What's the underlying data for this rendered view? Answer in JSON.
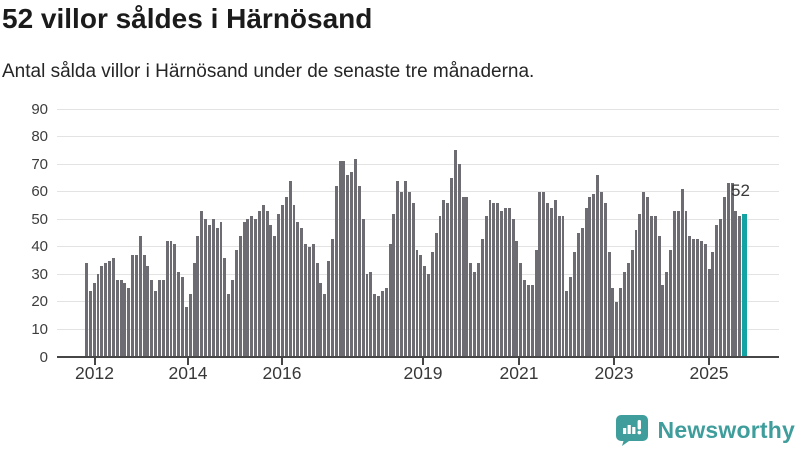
{
  "header": {
    "title": "52 villor såldes i Härnösand",
    "subtitle": "Antal sålda villor i Härnösand under de senaste tre månaderna."
  },
  "annotation": {
    "latest_value_label": "52"
  },
  "branding": {
    "name": "Newsworthy"
  },
  "colors": {
    "bar": "#6c6c72",
    "highlight": "#14a3a3",
    "grid": "#e3e3e4",
    "axis": "#464646",
    "logo": "#3f9e9c"
  },
  "chart_data": {
    "type": "bar",
    "title": "52 villor såldes i Härnösand",
    "subtitle": "Antal sålda villor i Härnösand under de senaste tre månaderna.",
    "x_description": "Monthly values, late 2011 through 2025; last bar (highlighted) = latest three months",
    "x_tick_labels": [
      "2012",
      "2014",
      "2016",
      "2019",
      "2021",
      "2023",
      "2025"
    ],
    "x_tick_indices": [
      2,
      26,
      50,
      86,
      110,
      134,
      158
    ],
    "y_ticks": [
      0,
      10,
      20,
      30,
      40,
      50,
      60,
      70,
      80,
      90
    ],
    "ylim": [
      0,
      90
    ],
    "grid": true,
    "legend": false,
    "highlight_index": 171,
    "highlight_value": 52,
    "values": [
      34,
      24,
      27,
      30,
      33,
      34,
      35,
      36,
      28,
      28,
      27,
      25,
      37,
      37,
      44,
      37,
      33,
      28,
      24,
      28,
      28,
      42,
      42,
      41,
      31,
      29,
      18,
      23,
      34,
      44,
      53,
      50,
      48,
      50,
      47,
      49,
      36,
      23,
      28,
      39,
      44,
      49,
      50,
      51,
      50,
      53,
      55,
      53,
      48,
      44,
      52,
      55,
      58,
      64,
      55,
      49,
      47,
      41,
      40,
      41,
      34,
      27,
      23,
      35,
      43,
      62,
      71,
      71,
      66,
      67,
      72,
      62,
      50,
      30,
      31,
      23,
      22,
      24,
      25,
      41,
      52,
      64,
      60,
      64,
      60,
      56,
      39,
      37,
      33,
      30,
      38,
      45,
      51,
      57,
      56,
      65,
      75,
      70,
      58,
      58,
      34,
      31,
      34,
      43,
      51,
      57,
      56,
      56,
      53,
      54,
      54,
      50,
      42,
      34,
      28,
      26,
      26,
      39,
      60,
      60,
      56,
      54,
      57,
      51,
      51,
      24,
      29,
      38,
      45,
      47,
      54,
      58,
      59,
      66,
      60,
      56,
      38,
      25,
      20,
      25,
      31,
      34,
      39,
      46,
      52,
      60,
      58,
      51,
      51,
      44,
      26,
      31,
      39,
      53,
      53,
      61,
      53,
      44,
      43,
      43,
      42,
      41,
      32,
      38,
      48,
      50,
      58,
      63,
      63,
      53,
      51,
      52
    ]
  }
}
